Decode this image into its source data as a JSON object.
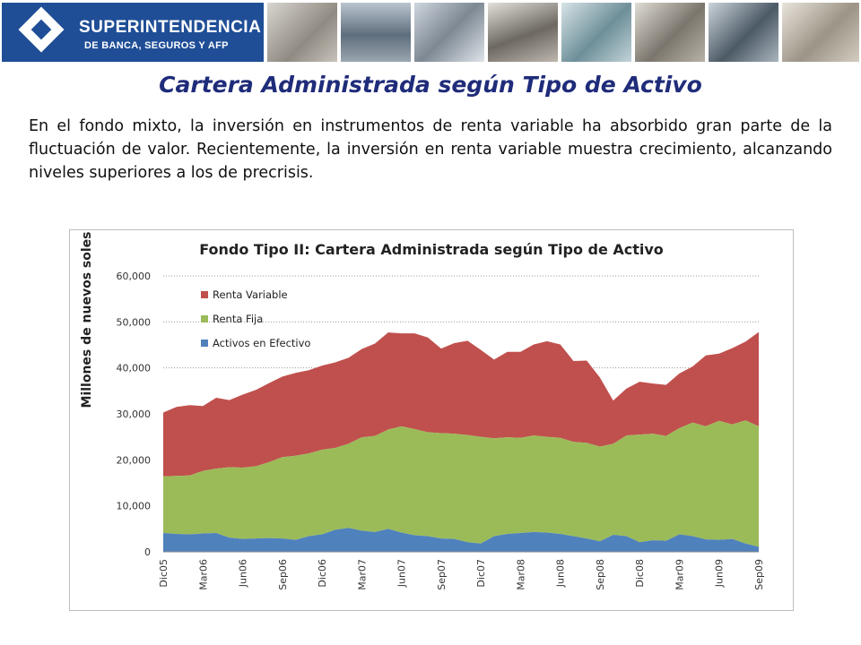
{
  "header": {
    "logo_title": "SUPERINTENDENCIA",
    "logo_subtitle": "DE BANCA, SEGUROS Y AFP"
  },
  "slide": {
    "title": "Cartera Administrada según Tipo de Activo",
    "paragraph": "En el fondo mixto, la inversión en instrumentos de renta variable ha absorbido gran parte de la fluctuación de valor. Recientemente, la inversión en renta variable muestra crecimiento, alcanzando niveles superiores a los de precrisis."
  },
  "colors": {
    "brand_blue": "#1f4e96",
    "title_navy": "#1f2c7a",
    "renta_variable": "#c0504d",
    "renta_fija": "#9bbb59",
    "activos_efectivo": "#4f81bd"
  },
  "chart_data": {
    "type": "area",
    "stacked": true,
    "title": "Fondo Tipo II: Cartera Administrada según Tipo de Activo",
    "ylabel": "Millones de nuevos soles",
    "xlabel": "",
    "ylim": [
      0,
      60000
    ],
    "yticks": [
      0,
      10000,
      20000,
      30000,
      40000,
      50000,
      60000
    ],
    "ytick_labels": [
      "0",
      "10,000",
      "20,000",
      "30,000",
      "40,000",
      "50,000",
      "60,000"
    ],
    "grid": "horizontal dotted",
    "legend_position": "top-left",
    "x": [
      "Dic05",
      "Ene06",
      "Feb06",
      "Mar06",
      "Abr06",
      "May06",
      "Jun06",
      "Jul06",
      "Ago06",
      "Sep06",
      "Oct06",
      "Nov06",
      "Dic06",
      "Ene07",
      "Feb07",
      "Mar07",
      "Abr07",
      "May07",
      "Jun07",
      "Jul07",
      "Ago07",
      "Sep07",
      "Oct07",
      "Nov07",
      "Dic07",
      "Ene08",
      "Feb08",
      "Mar08",
      "Abr08",
      "May08",
      "Jun08",
      "Jul08",
      "Ago08",
      "Sep08",
      "Oct08",
      "Nov08",
      "Dic08",
      "Ene09",
      "Feb09",
      "Mar09",
      "Abr09",
      "May09",
      "Jun09",
      "Jul09",
      "Ago09",
      "Sep09"
    ],
    "x_tick_labels": [
      "Dic05",
      "Mar06",
      "Jun06",
      "Sep06",
      "Dic06",
      "Mar07",
      "Jun07",
      "Sep07",
      "Dic07",
      "Mar08",
      "Jun08",
      "Sep08",
      "Dic08",
      "Mar09",
      "Jun09",
      "Sep09"
    ],
    "series": [
      {
        "name": "Activos en Efectivo",
        "values": [
          4100,
          3900,
          3800,
          4000,
          4100,
          3100,
          2800,
          2900,
          3000,
          2900,
          2600,
          3400,
          3800,
          4800,
          5200,
          4600,
          4300,
          5000,
          4200,
          3600,
          3400,
          2900,
          2800,
          2100,
          1800,
          3400,
          3900,
          4100,
          4300,
          4200,
          3900,
          3400,
          2900,
          2300,
          3700,
          3400,
          2100,
          2500,
          2400,
          3800,
          3400,
          2700,
          2600,
          2800,
          1800,
          1100
        ]
      },
      {
        "name": "Renta Fija",
        "values": [
          12300,
          12600,
          12800,
          13600,
          14000,
          15300,
          15500,
          15700,
          16500,
          17700,
          18300,
          18000,
          18400,
          17800,
          18300,
          20300,
          20900,
          21600,
          23100,
          23100,
          22600,
          22900,
          22900,
          23300,
          23200,
          21300,
          21000,
          20700,
          21000,
          20800,
          20900,
          20500,
          20800,
          20600,
          19800,
          21900,
          23400,
          23200,
          22800,
          23100,
          24700,
          24600,
          25900,
          24900,
          26800,
          26200
        ]
      },
      {
        "name": "Renta Variable",
        "values": [
          13900,
          15000,
          15300,
          14100,
          15400,
          14600,
          15900,
          16600,
          17200,
          17500,
          18000,
          18100,
          18300,
          18600,
          18700,
          19200,
          20100,
          21100,
          20200,
          20800,
          20600,
          18400,
          19700,
          20500,
          18900,
          17100,
          18600,
          18700,
          19800,
          20800,
          20300,
          17600,
          17900,
          15000,
          9400,
          10200,
          11500,
          10900,
          11100,
          11900,
          12200,
          15400,
          14600,
          16600,
          17100,
          20500
        ]
      }
    ]
  }
}
